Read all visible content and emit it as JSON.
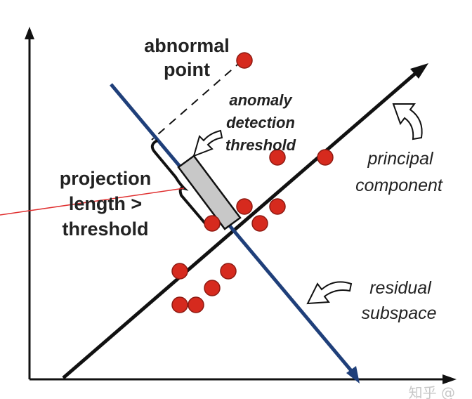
{
  "labels": {
    "abnormal_point": [
      "abnormal",
      "point"
    ],
    "anomaly_threshold": [
      "anomaly",
      "detection",
      "threshold"
    ],
    "projection": [
      "projection",
      "length >",
      "threshold"
    ],
    "principal_component": [
      "principal",
      "component"
    ],
    "residual_subspace": [
      "residual",
      "subspace"
    ]
  },
  "watermark": "知乎 @",
  "colors": {
    "point": "#d62a1e",
    "residual_axis": "#1f3f7a",
    "principal_axis": "#111111",
    "threshold_box": "#c8c8c8",
    "pointer_line": "#e03030"
  }
}
